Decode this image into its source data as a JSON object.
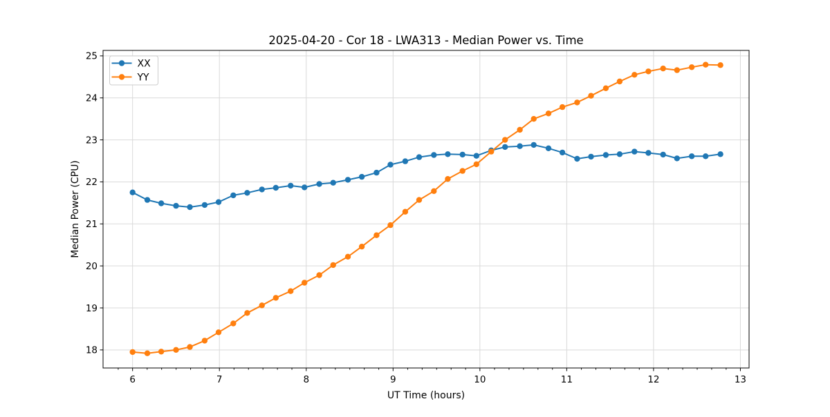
{
  "chart_data": {
    "type": "line",
    "title": "2025-04-20 - Cor 18 - LWA313 - Median Power vs. Time",
    "xlabel": "UT Time (hours)",
    "ylabel": "Median Power (CPU)",
    "xlim": [
      5.66,
      13.1
    ],
    "ylim": [
      17.57,
      25.13
    ],
    "x_ticks": [
      6,
      7,
      8,
      9,
      10,
      11,
      12,
      13
    ],
    "y_ticks": [
      18,
      19,
      20,
      21,
      22,
      23,
      24,
      25
    ],
    "x_minor_tick_step": 0.1667,
    "grid": true,
    "grid_color": "#d9d9d9",
    "spine_color": "#000000",
    "text_color": "#000000",
    "background_color": "#ffffff",
    "legend_position": "upper left",
    "x": [
      6.0,
      6.17,
      6.33,
      6.5,
      6.66,
      6.83,
      6.99,
      7.16,
      7.32,
      7.49,
      7.65,
      7.82,
      7.98,
      8.15,
      8.31,
      8.48,
      8.64,
      8.81,
      8.97,
      9.14,
      9.3,
      9.47,
      9.63,
      9.8,
      9.96,
      10.13,
      10.29,
      10.46,
      10.62,
      10.79,
      10.95,
      11.12,
      11.28,
      11.45,
      11.61,
      11.78,
      11.94,
      12.11,
      12.27,
      12.44,
      12.6,
      12.77
    ],
    "series": [
      {
        "name": "XX",
        "color": "#1f77b4",
        "values": [
          21.75,
          21.57,
          21.49,
          21.43,
          21.4,
          21.45,
          21.52,
          21.68,
          21.74,
          21.82,
          21.86,
          21.91,
          21.87,
          21.95,
          21.98,
          22.05,
          22.12,
          22.22,
          22.41,
          22.49,
          22.59,
          22.64,
          22.66,
          22.65,
          22.62,
          22.75,
          22.83,
          22.85,
          22.88,
          22.8,
          22.7,
          22.55,
          22.6,
          22.64,
          22.66,
          22.72,
          22.69,
          22.65,
          22.56,
          22.61,
          22.61,
          22.66
        ]
      },
      {
        "name": "YY",
        "color": "#ff7f0e",
        "values": [
          17.95,
          17.92,
          17.96,
          18.0,
          18.07,
          18.22,
          18.42,
          18.63,
          18.88,
          19.06,
          19.24,
          19.4,
          19.6,
          19.78,
          20.02,
          20.22,
          20.46,
          20.73,
          20.97,
          21.29,
          21.57,
          21.78,
          22.07,
          22.26,
          22.42,
          22.72,
          23.0,
          23.24,
          23.5,
          23.63,
          23.78,
          23.89,
          24.05,
          24.23,
          24.39,
          24.55,
          24.63,
          24.7,
          24.66,
          24.73,
          24.79,
          24.78
        ]
      }
    ]
  }
}
